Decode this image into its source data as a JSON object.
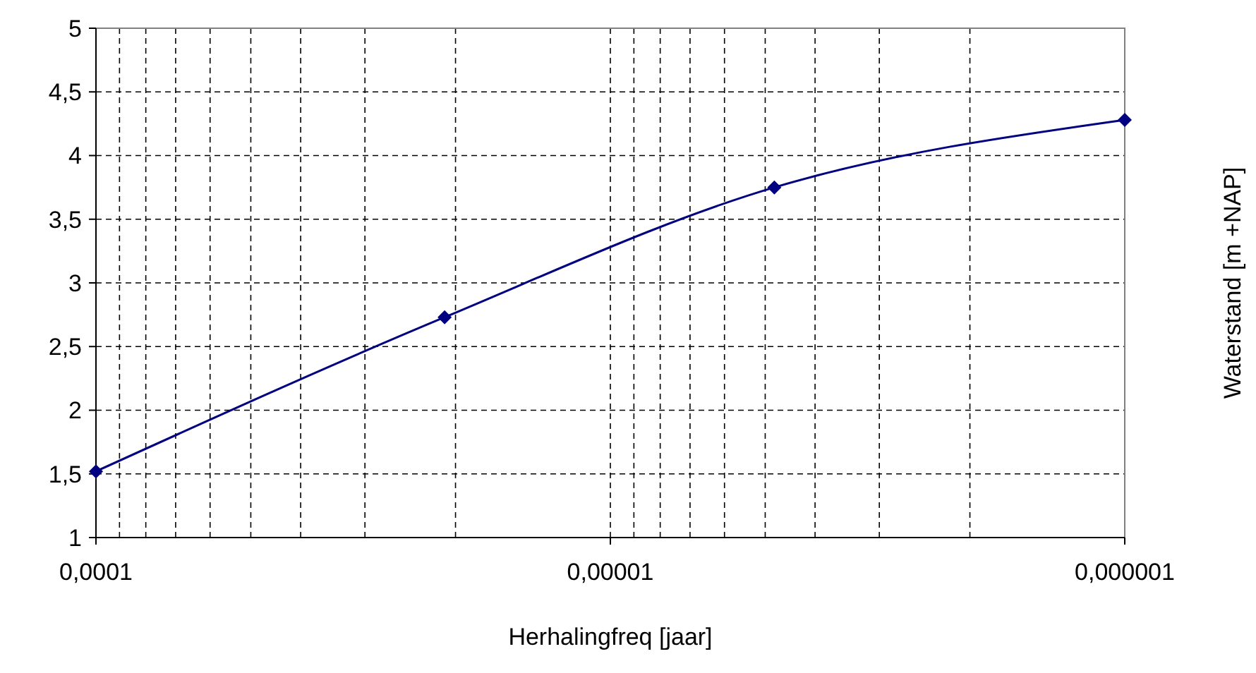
{
  "chart_data": {
    "type": "line",
    "xlabel": "Herhalingfreq [jaar]",
    "ylabel": "Waterstand [m +NAP]",
    "log": "x",
    "x": [
      0.0001,
      2.1e-05,
      4.8e-06,
      1e-06
    ],
    "series": [
      {
        "color": "#000080",
        "values": [
          1.52,
          2.73,
          3.75,
          4.28
        ]
      }
    ],
    "xlim": [
      0.0001,
      1e-06
    ],
    "xticks": [
      {
        "value": 0.0001,
        "label": "0,0001"
      },
      {
        "value": 1e-05,
        "label": "0,00001"
      },
      {
        "value": 1e-06,
        "label": "0,000001"
      }
    ],
    "ylim": [
      1,
      5
    ],
    "yticks": [
      1,
      {
        "value": 1.5,
        "label": "1,5"
      },
      2,
      {
        "value": 2.5,
        "label": "2,5"
      },
      3,
      {
        "value": 3.5,
        "label": "3,5"
      },
      4,
      {
        "value": 4.5,
        "label": "4,5"
      },
      5
    ],
    "grid": true,
    "marker": "diamond",
    "line_style": "solid"
  }
}
